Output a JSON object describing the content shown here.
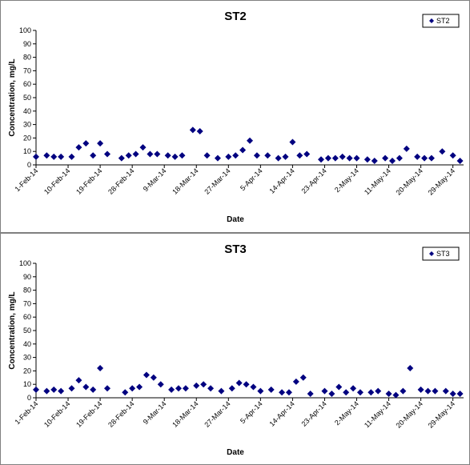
{
  "chart_data": [
    {
      "type": "scatter",
      "title": "ST2",
      "xlabel": "Date",
      "ylabel": "Concentration, mg/L",
      "ylim": [
        0,
        100
      ],
      "yticks": [
        "0",
        "10",
        "20",
        "30",
        "40",
        "50",
        "60",
        "70",
        "80",
        "90",
        "100"
      ],
      "xlim": [
        "2014-02-01",
        "2014-06-01"
      ],
      "xticks": [
        {
          "label": "1-Feb-14",
          "date": "2014-02-01"
        },
        {
          "label": "10-Feb-14",
          "date": "2014-02-10"
        },
        {
          "label": "19-Feb-14",
          "date": "2014-02-19"
        },
        {
          "label": "28-Feb-14",
          "date": "2014-02-28"
        },
        {
          "label": "9-Mar-14",
          "date": "2014-03-09"
        },
        {
          "label": "18-Mar-14",
          "date": "2014-03-18"
        },
        {
          "label": "27-Mar-14",
          "date": "2014-03-27"
        },
        {
          "label": "5-Apr-14",
          "date": "2014-04-05"
        },
        {
          "label": "14-Apr-14",
          "date": "2014-04-14"
        },
        {
          "label": "23-Apr-14",
          "date": "2014-04-23"
        },
        {
          "label": "2-May-14",
          "date": "2014-05-02"
        },
        {
          "label": "11-May-14",
          "date": "2014-05-11"
        },
        {
          "label": "20-May-14",
          "date": "2014-05-20"
        },
        {
          "label": "29-May-14",
          "date": "2014-05-29"
        }
      ],
      "grid": false,
      "legend_position": "top-right",
      "series": [
        {
          "name": "ST2",
          "color": "#000080",
          "marker": "diamond",
          "points": [
            {
              "x": "2014-02-01",
              "y": 6
            },
            {
              "x": "2014-02-04",
              "y": 7
            },
            {
              "x": "2014-02-06",
              "y": 6
            },
            {
              "x": "2014-02-08",
              "y": 6
            },
            {
              "x": "2014-02-11",
              "y": 6
            },
            {
              "x": "2014-02-13",
              "y": 13
            },
            {
              "x": "2014-02-15",
              "y": 16
            },
            {
              "x": "2014-02-17",
              "y": 7
            },
            {
              "x": "2014-02-19",
              "y": 16
            },
            {
              "x": "2014-02-21",
              "y": 8
            },
            {
              "x": "2014-02-25",
              "y": 5
            },
            {
              "x": "2014-02-27",
              "y": 7
            },
            {
              "x": "2014-03-01",
              "y": 8
            },
            {
              "x": "2014-03-03",
              "y": 13
            },
            {
              "x": "2014-03-05",
              "y": 8
            },
            {
              "x": "2014-03-07",
              "y": 8
            },
            {
              "x": "2014-03-10",
              "y": 7
            },
            {
              "x": "2014-03-12",
              "y": 6
            },
            {
              "x": "2014-03-14",
              "y": 7
            },
            {
              "x": "2014-03-17",
              "y": 26
            },
            {
              "x": "2014-03-19",
              "y": 25
            },
            {
              "x": "2014-03-21",
              "y": 7
            },
            {
              "x": "2014-03-24",
              "y": 5
            },
            {
              "x": "2014-03-27",
              "y": 6
            },
            {
              "x": "2014-03-29",
              "y": 7
            },
            {
              "x": "2014-03-31",
              "y": 11
            },
            {
              "x": "2014-04-02",
              "y": 18
            },
            {
              "x": "2014-04-04",
              "y": 7
            },
            {
              "x": "2014-04-07",
              "y": 7
            },
            {
              "x": "2014-04-10",
              "y": 5
            },
            {
              "x": "2014-04-12",
              "y": 6
            },
            {
              "x": "2014-04-14",
              "y": 17
            },
            {
              "x": "2014-04-16",
              "y": 7
            },
            {
              "x": "2014-04-18",
              "y": 8
            },
            {
              "x": "2014-04-22",
              "y": 4
            },
            {
              "x": "2014-04-24",
              "y": 5
            },
            {
              "x": "2014-04-26",
              "y": 5
            },
            {
              "x": "2014-04-28",
              "y": 6
            },
            {
              "x": "2014-04-30",
              "y": 5
            },
            {
              "x": "2014-05-02",
              "y": 5
            },
            {
              "x": "2014-05-05",
              "y": 4
            },
            {
              "x": "2014-05-07",
              "y": 3
            },
            {
              "x": "2014-05-10",
              "y": 5
            },
            {
              "x": "2014-05-12",
              "y": 3
            },
            {
              "x": "2014-05-14",
              "y": 5
            },
            {
              "x": "2014-05-16",
              "y": 12
            },
            {
              "x": "2014-05-19",
              "y": 6
            },
            {
              "x": "2014-05-21",
              "y": 5
            },
            {
              "x": "2014-05-23",
              "y": 5
            },
            {
              "x": "2014-05-26",
              "y": 10
            },
            {
              "x": "2014-05-29",
              "y": 7
            },
            {
              "x": "2014-05-31",
              "y": 3
            }
          ]
        }
      ]
    },
    {
      "type": "scatter",
      "title": "ST3",
      "xlabel": "Date",
      "ylabel": "Concentration, mg/L",
      "ylim": [
        0,
        100
      ],
      "yticks": [
        "0",
        "10",
        "20",
        "30",
        "40",
        "50",
        "60",
        "70",
        "80",
        "90",
        "100"
      ],
      "xlim": [
        "2014-02-01",
        "2014-06-01"
      ],
      "xticks": [
        {
          "label": "1-Feb-14",
          "date": "2014-02-01"
        },
        {
          "label": "10-Feb-14",
          "date": "2014-02-10"
        },
        {
          "label": "19-Feb-14",
          "date": "2014-02-19"
        },
        {
          "label": "28-Feb-14",
          "date": "2014-02-28"
        },
        {
          "label": "9-Mar-14",
          "date": "2014-03-09"
        },
        {
          "label": "18-Mar-14",
          "date": "2014-03-18"
        },
        {
          "label": "27-Mar-14",
          "date": "2014-03-27"
        },
        {
          "label": "5-Apr-14",
          "date": "2014-04-05"
        },
        {
          "label": "14-Apr-14",
          "date": "2014-04-14"
        },
        {
          "label": "23-Apr-14",
          "date": "2014-04-23"
        },
        {
          "label": "2-May-14",
          "date": "2014-05-02"
        },
        {
          "label": "11-May-14",
          "date": "2014-05-11"
        },
        {
          "label": "20-May-14",
          "date": "2014-05-20"
        },
        {
          "label": "29-May-14",
          "date": "2014-05-29"
        }
      ],
      "grid": false,
      "legend_position": "top-right",
      "series": [
        {
          "name": "ST3",
          "color": "#000080",
          "marker": "diamond",
          "points": [
            {
              "x": "2014-02-01",
              "y": 6
            },
            {
              "x": "2014-02-04",
              "y": 5
            },
            {
              "x": "2014-02-06",
              "y": 6
            },
            {
              "x": "2014-02-08",
              "y": 5
            },
            {
              "x": "2014-02-11",
              "y": 7
            },
            {
              "x": "2014-02-13",
              "y": 13
            },
            {
              "x": "2014-02-15",
              "y": 8
            },
            {
              "x": "2014-02-17",
              "y": 6
            },
            {
              "x": "2014-02-19",
              "y": 22
            },
            {
              "x": "2014-02-21",
              "y": 7
            },
            {
              "x": "2014-02-26",
              "y": 4
            },
            {
              "x": "2014-02-28",
              "y": 7
            },
            {
              "x": "2014-03-02",
              "y": 8
            },
            {
              "x": "2014-03-04",
              "y": 17
            },
            {
              "x": "2014-03-06",
              "y": 15
            },
            {
              "x": "2014-03-08",
              "y": 10
            },
            {
              "x": "2014-03-11",
              "y": 6
            },
            {
              "x": "2014-03-13",
              "y": 7
            },
            {
              "x": "2014-03-15",
              "y": 7
            },
            {
              "x": "2014-03-18",
              "y": 9
            },
            {
              "x": "2014-03-20",
              "y": 10
            },
            {
              "x": "2014-03-22",
              "y": 7
            },
            {
              "x": "2014-03-25",
              "y": 5
            },
            {
              "x": "2014-03-28",
              "y": 7
            },
            {
              "x": "2014-03-30",
              "y": 11
            },
            {
              "x": "2014-04-01",
              "y": 10
            },
            {
              "x": "2014-04-03",
              "y": 8
            },
            {
              "x": "2014-04-05",
              "y": 5
            },
            {
              "x": "2014-04-08",
              "y": 6
            },
            {
              "x": "2014-04-11",
              "y": 4
            },
            {
              "x": "2014-04-13",
              "y": 4
            },
            {
              "x": "2014-04-15",
              "y": 12
            },
            {
              "x": "2014-04-17",
              "y": 15
            },
            {
              "x": "2014-04-19",
              "y": 3
            },
            {
              "x": "2014-04-23",
              "y": 5
            },
            {
              "x": "2014-04-25",
              "y": 3
            },
            {
              "x": "2014-04-27",
              "y": 8
            },
            {
              "x": "2014-04-29",
              "y": 4
            },
            {
              "x": "2014-05-01",
              "y": 7
            },
            {
              "x": "2014-05-03",
              "y": 4
            },
            {
              "x": "2014-05-06",
              "y": 4
            },
            {
              "x": "2014-05-08",
              "y": 5
            },
            {
              "x": "2014-05-11",
              "y": 3
            },
            {
              "x": "2014-05-13",
              "y": 2
            },
            {
              "x": "2014-05-15",
              "y": 5
            },
            {
              "x": "2014-05-17",
              "y": 22
            },
            {
              "x": "2014-05-20",
              "y": 6
            },
            {
              "x": "2014-05-22",
              "y": 5
            },
            {
              "x": "2014-05-24",
              "y": 5
            },
            {
              "x": "2014-05-27",
              "y": 5
            },
            {
              "x": "2014-05-29",
              "y": 3
            },
            {
              "x": "2014-05-31",
              "y": 3
            }
          ]
        }
      ]
    }
  ]
}
